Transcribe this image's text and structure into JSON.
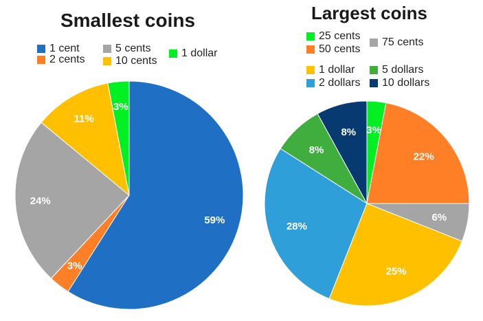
{
  "chart_data": [
    {
      "type": "pie",
      "title": "Smallest coins",
      "legend_placement": "top",
      "slices": [
        {
          "label": "1 cent",
          "value": 59,
          "display": "59%",
          "color": "#1f6fc4"
        },
        {
          "label": "2 cents",
          "value": 3,
          "display": "3%",
          "color": "#ff7f27"
        },
        {
          "label": "5 cents",
          "value": 24,
          "display": "24%",
          "color": "#a5a5a5"
        },
        {
          "label": "10 cents",
          "value": 11,
          "display": "11%",
          "color": "#ffc000"
        },
        {
          "label": "1 dollar",
          "value": 3,
          "display": "3%",
          "color": "#00f024"
        }
      ]
    },
    {
      "type": "pie",
      "title": "Largest coins",
      "legend_placement": "top",
      "slices": [
        {
          "label": "25 cents",
          "value": 3,
          "display": "3%",
          "color": "#00f024"
        },
        {
          "label": "50 cents",
          "value": 22,
          "display": "22%",
          "color": "#ff7f27"
        },
        {
          "label": "75 cents",
          "value": 6,
          "display": "6%",
          "color": "#a5a5a5"
        },
        {
          "label": "1 dollar",
          "value": 25,
          "display": "25%",
          "color": "#ffc000"
        },
        {
          "label": "2 dollars",
          "value": 28,
          "display": "28%",
          "color": "#2e9fd9"
        },
        {
          "label": "5 dollars",
          "value": 8,
          "display": "8%",
          "color": "#3fae3f"
        },
        {
          "label": "10 dollars",
          "value": 8,
          "display": "8%",
          "color": "#083a72"
        }
      ]
    }
  ]
}
